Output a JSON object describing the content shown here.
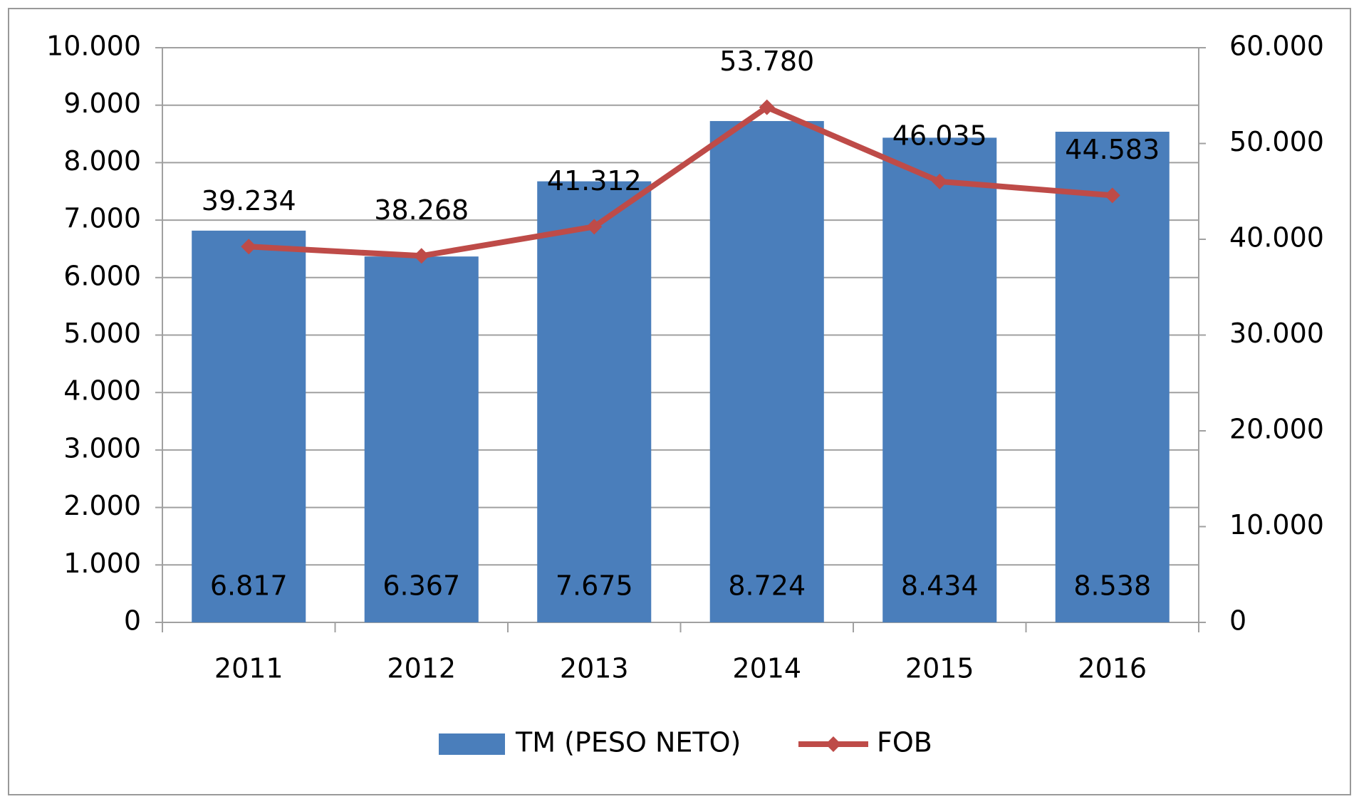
{
  "chart_data": {
    "type": "bar",
    "categories": [
      "2011",
      "2012",
      "2013",
      "2014",
      "2015",
      "2016"
    ],
    "series": [
      {
        "name": "TM (PESO NETO)",
        "type": "bar",
        "color": "#4a7ebb",
        "axis": "y",
        "values": [
          6817,
          6367,
          7675,
          8724,
          8434,
          8538
        ],
        "value_labels": [
          "6.817",
          "6.367",
          "7.675",
          "8.724",
          "8.434",
          "8.538"
        ]
      },
      {
        "name": "FOB",
        "type": "line",
        "color": "#be4b48",
        "axis": "y2",
        "values": [
          39234,
          38268,
          41312,
          53780,
          46035,
          44583
        ],
        "value_labels": [
          "39.234",
          "38.268",
          "41.312",
          "53.780",
          "46.035",
          "44.583"
        ]
      }
    ],
    "ylim": [
      0,
      10000
    ],
    "yticks": [
      0,
      {
        "value": 1000,
        "label": "1.000"
      },
      {
        "value": 2000,
        "label": "2.000"
      },
      {
        "value": 3000,
        "label": "3.000"
      },
      {
        "value": 4000,
        "label": "4.000"
      },
      {
        "value": 5000,
        "label": "5.000"
      },
      {
        "value": 6000,
        "label": "6.000"
      },
      {
        "value": 7000,
        "label": "7.000"
      },
      {
        "value": 8000,
        "label": "8.000"
      },
      {
        "value": 9000,
        "label": "9.000"
      },
      {
        "value": 10000,
        "label": "10.000"
      }
    ],
    "y2lim": [
      0,
      60000
    ],
    "y2ticks": [
      0,
      {
        "value": 10000,
        "label": "10.000"
      },
      {
        "value": 20000,
        "label": "20.000"
      },
      {
        "value": 30000,
        "label": "30.000"
      },
      {
        "value": 40000,
        "label": "40.000"
      },
      {
        "value": 50000,
        "label": "50.000"
      },
      {
        "value": 60000,
        "label": "60.000"
      }
    ],
    "grid": true,
    "legend": "bottom"
  }
}
